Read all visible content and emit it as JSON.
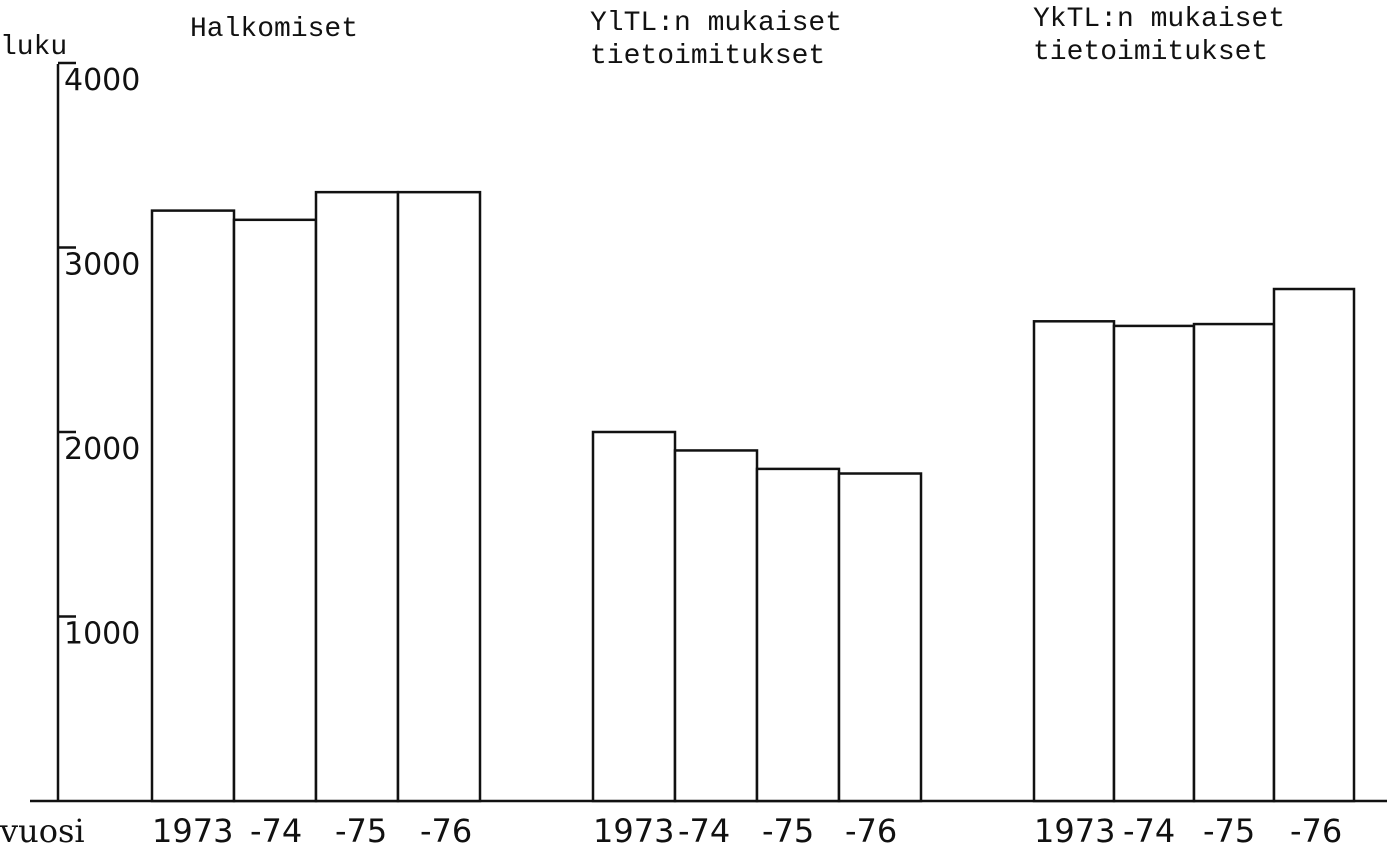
{
  "chart_data": {
    "type": "bar",
    "ylabel": "luku",
    "xlabel": "vuosi",
    "ylim": [
      0,
      4000
    ],
    "yticks": [
      1000,
      2000,
      3000,
      4000
    ],
    "grid": false,
    "groups": [
      {
        "title_lines": [
          "Halkomiset"
        ],
        "categories": [
          "1973",
          "-74",
          "-75",
          "-76"
        ],
        "values": [
          3200,
          3150,
          3300,
          3300
        ]
      },
      {
        "title_lines": [
          "YlTL:n mukaiset",
          "tietoimitukset"
        ],
        "categories": [
          "1973",
          "-74",
          "-75",
          "-76"
        ],
        "values": [
          2000,
          1900,
          1800,
          1775
        ]
      },
      {
        "title_lines": [
          "YkTL:n mukaiset",
          "tietoimitukset"
        ],
        "categories": [
          "1973",
          "-74",
          "-75",
          "-76"
        ],
        "values": [
          2600,
          2575,
          2585,
          2775
        ]
      }
    ]
  }
}
